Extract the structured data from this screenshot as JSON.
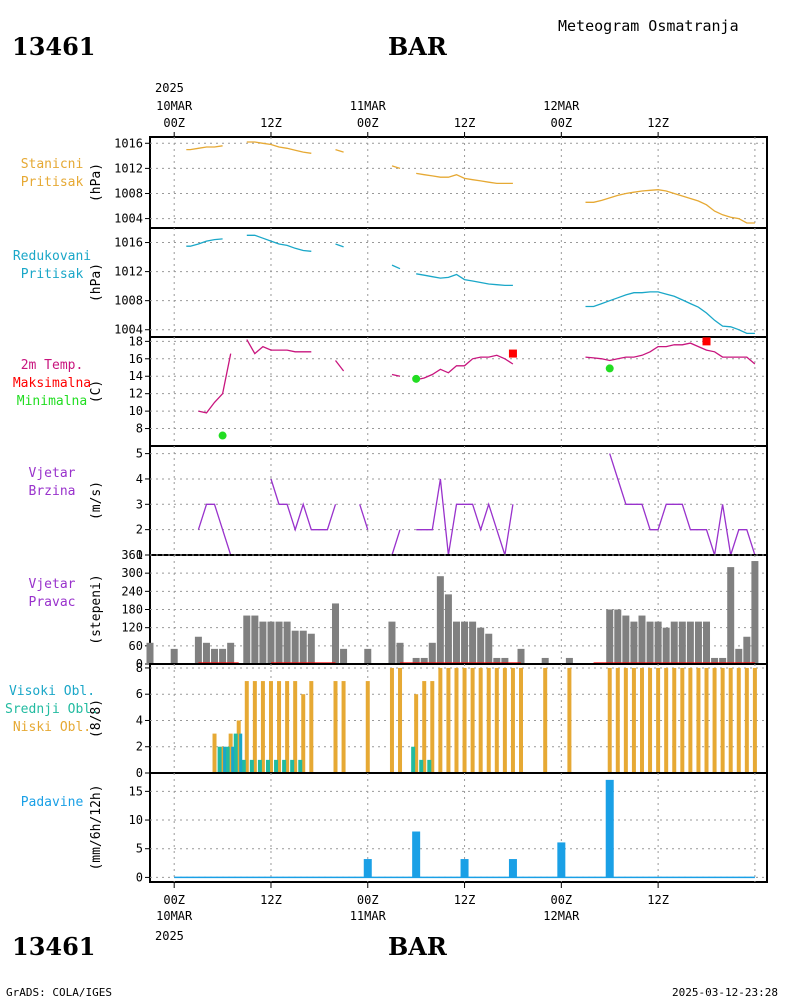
{
  "header": {
    "station_id": "13461",
    "station_name": "BAR",
    "product": "Meteogram Osmatranja"
  },
  "footer": {
    "station_id": "13461",
    "station_name": "BAR",
    "credit": "GrADS: COLA/IGES",
    "timestamp": "2025-03-12-23:28"
  },
  "time_axis": {
    "top_year": "2025",
    "bottom_year": "2025",
    "top_labels": [
      {
        "hour": 0,
        "day": "10MAR",
        "text": "00Z"
      },
      {
        "hour": 12,
        "day": "",
        "text": "12Z"
      },
      {
        "hour": 24,
        "day": "11MAR",
        "text": "00Z"
      },
      {
        "hour": 36,
        "day": "",
        "text": "12Z"
      },
      {
        "hour": 48,
        "day": "12MAR",
        "text": "00Z"
      },
      {
        "hour": 60,
        "day": "",
        "text": "12Z"
      }
    ]
  },
  "colors": {
    "pressure": "#e6a934",
    "reduced_pressure": "#1aa7c8",
    "temp": "#c8157e",
    "tmax": "#ff0000",
    "tmin": "#22dd22",
    "wind_speed": "#9932cc",
    "wind_dir_bar": "#808080",
    "wind_dir_line": "#ff0000",
    "cloud_high": "#1aa7c8",
    "cloud_mid": "#22bba0",
    "cloud_low": "#e6a934",
    "precip": "#1aa0e6"
  },
  "chart_data": [
    {
      "id": "station-pressure",
      "type": "line",
      "label_lines": [
        "Stanicni",
        "Pritisak"
      ],
      "unit": "(hPa)",
      "ylim": [
        1002.5,
        1017
      ],
      "yticks": [
        1004,
        1008,
        1012,
        1016
      ],
      "series": [
        {
          "x": [
            1.5,
            2,
            3,
            4,
            5,
            6
          ],
          "y": [
            1015.0,
            1015.0,
            1015.2,
            1015.4,
            1015.4,
            1015.6
          ]
        },
        {
          "x": [
            9,
            10,
            11,
            12,
            13,
            14,
            15,
            16,
            17
          ],
          "y": [
            1016.2,
            1016.2,
            1016.0,
            1015.8,
            1015.4,
            1015.2,
            1014.9,
            1014.6,
            1014.4
          ]
        },
        {
          "x": [
            20,
            21
          ],
          "y": [
            1015.0,
            1014.6
          ]
        },
        {
          "x": [
            27,
            28
          ],
          "y": [
            1012.4,
            1012.0
          ]
        },
        {
          "x": [
            30,
            31,
            32,
            33,
            34,
            35,
            36,
            37,
            38,
            39,
            40,
            41,
            42
          ],
          "y": [
            1011.2,
            1011.0,
            1010.8,
            1010.6,
            1010.6,
            1011.0,
            1010.4,
            1010.2,
            1010.0,
            1009.8,
            1009.6,
            1009.6,
            1009.6
          ]
        },
        {
          "x": [
            51,
            52,
            53,
            54,
            55,
            56,
            57,
            58,
            59,
            60,
            61,
            62,
            63,
            64,
            65,
            66,
            67,
            68,
            69,
            70,
            71,
            72
          ],
          "y": [
            1006.6,
            1006.6,
            1006.9,
            1007.3,
            1007.7,
            1008.0,
            1008.2,
            1008.4,
            1008.5,
            1008.6,
            1008.4,
            1008.0,
            1007.6,
            1007.2,
            1006.8,
            1006.2,
            1005.2,
            1004.6,
            1004.2,
            1004.0,
            1003.3,
            1003.3
          ]
        }
      ]
    },
    {
      "id": "reduced-pressure",
      "type": "line",
      "label_lines": [
        "Redukovani",
        "Pritisak"
      ],
      "unit": "(hPa)",
      "ylim": [
        1003,
        1018
      ],
      "yticks": [
        1004,
        1008,
        1012,
        1016
      ],
      "series": [
        {
          "x": [
            1.5,
            2,
            3,
            4,
            5,
            6
          ],
          "y": [
            1015.5,
            1015.5,
            1015.8,
            1016.2,
            1016.4,
            1016.5
          ]
        },
        {
          "x": [
            9,
            10,
            11,
            12,
            13,
            14,
            15,
            16,
            17
          ],
          "y": [
            1017.0,
            1017.0,
            1016.6,
            1016.2,
            1015.8,
            1015.6,
            1015.2,
            1014.9,
            1014.8
          ]
        },
        {
          "x": [
            20,
            21
          ],
          "y": [
            1015.8,
            1015.4
          ]
        },
        {
          "x": [
            27,
            28
          ],
          "y": [
            1012.9,
            1012.4
          ]
        },
        {
          "x": [
            30,
            31,
            32,
            33,
            34,
            35,
            36,
            37,
            38,
            39,
            40,
            41,
            42
          ],
          "y": [
            1011.7,
            1011.5,
            1011.3,
            1011.1,
            1011.2,
            1011.6,
            1010.9,
            1010.7,
            1010.5,
            1010.3,
            1010.2,
            1010.1,
            1010.1
          ]
        },
        {
          "x": [
            51,
            52,
            53,
            54,
            55,
            56,
            57,
            58,
            59,
            60,
            61,
            62,
            63,
            64,
            65,
            66,
            67,
            68,
            69,
            70,
            71,
            72
          ],
          "y": [
            1007.2,
            1007.2,
            1007.6,
            1008.0,
            1008.4,
            1008.8,
            1009.1,
            1009.1,
            1009.2,
            1009.2,
            1008.9,
            1008.6,
            1008.1,
            1007.6,
            1007.1,
            1006.3,
            1005.3,
            1004.5,
            1004.4,
            1004.0,
            1003.5,
            1003.5
          ]
        }
      ]
    },
    {
      "id": "temperature",
      "type": "line",
      "label_lines": [
        "2m Temp.",
        "Maksimalna",
        "Minimalna"
      ],
      "label_colors": [
        "#c8157e",
        "#ff0000",
        "#22dd22"
      ],
      "unit": "(C)",
      "ylim": [
        6,
        18.5
      ],
      "yticks": [
        8,
        10,
        12,
        14,
        16,
        18
      ],
      "series": [
        {
          "x": [
            3,
            4,
            5,
            6,
            7
          ],
          "y": [
            10.0,
            9.8,
            11.0,
            12.0,
            16.6
          ]
        },
        {
          "x": [
            9,
            10,
            11,
            12,
            13,
            14,
            15,
            16,
            17
          ],
          "y": [
            18.2,
            16.6,
            17.4,
            17.0,
            17.0,
            17.0,
            16.8,
            16.8,
            16.8
          ]
        },
        {
          "x": [
            20,
            21
          ],
          "y": [
            15.8,
            14.6
          ]
        },
        {
          "x": [
            27,
            28
          ],
          "y": [
            14.2,
            14.0
          ]
        },
        {
          "x": [
            30,
            31,
            32,
            33,
            34,
            35,
            36,
            37,
            38,
            39,
            40,
            41,
            42
          ],
          "y": [
            13.6,
            13.8,
            14.2,
            14.8,
            14.4,
            15.2,
            15.2,
            16.0,
            16.2,
            16.2,
            16.4,
            16.0,
            15.4
          ]
        },
        {
          "x": [
            51,
            52,
            53,
            54,
            55,
            56,
            57,
            58,
            59,
            60,
            61,
            62,
            63,
            64,
            65,
            66,
            67,
            68,
            69,
            70,
            71,
            72
          ],
          "y": [
            16.2,
            16.1,
            16.0,
            15.8,
            16.0,
            16.2,
            16.2,
            16.4,
            16.8,
            17.4,
            17.4,
            17.6,
            17.6,
            17.8,
            17.4,
            17.0,
            16.8,
            16.2,
            16.2,
            16.2,
            16.2,
            15.4
          ]
        }
      ],
      "tmax": [
        {
          "x": 42,
          "y": 16.6
        },
        {
          "x": 66,
          "y": 18.0
        }
      ],
      "tmin": [
        {
          "x": 6,
          "y": 7.2
        },
        {
          "x": 30,
          "y": 13.7
        },
        {
          "x": 54,
          "y": 14.9
        }
      ]
    },
    {
      "id": "wind-speed",
      "type": "line",
      "label_lines": [
        "Vjetar",
        "Brzina"
      ],
      "unit": "(m/s)",
      "ylim": [
        1,
        5.3
      ],
      "yticks": [
        1,
        2,
        3,
        4,
        5
      ],
      "series": [
        {
          "x": [
            3,
            4,
            5,
            6,
            7
          ],
          "y": [
            2,
            3,
            3,
            2,
            1
          ]
        },
        {
          "x": [
            12,
            13,
            14,
            15,
            16,
            17,
            18,
            19,
            20
          ],
          "y": [
            4,
            3,
            3,
            2,
            3,
            2,
            2,
            2,
            3
          ]
        },
        {
          "x": [
            23,
            24
          ],
          "y": [
            3,
            2
          ]
        },
        {
          "x": [
            27,
            28,
            29,
            30,
            31,
            32,
            33,
            34,
            35,
            36,
            37,
            38,
            39,
            40,
            41,
            42
          ],
          "y": [
            1,
            2,
            null,
            2,
            2,
            2,
            4,
            1,
            3,
            3,
            3,
            2,
            3,
            2,
            1,
            3
          ]
        },
        {
          "x": [
            54,
            55,
            56,
            57,
            58,
            59,
            60,
            61,
            62,
            63,
            64,
            65,
            66,
            67,
            68,
            69,
            70,
            71,
            72
          ],
          "y": [
            5,
            4,
            3,
            3,
            3,
            2,
            2,
            3,
            3,
            3,
            2,
            2,
            2,
            1,
            3,
            1,
            2,
            2,
            1
          ]
        }
      ]
    },
    {
      "id": "wind-direction",
      "type": "bar",
      "label_lines": [
        "Vjetar",
        "Pravac"
      ],
      "unit": "(stepeni)",
      "ylim": [
        0,
        360
      ],
      "yticks": [
        0,
        60,
        120,
        180,
        240,
        300,
        360
      ],
      "x": [
        -3,
        0,
        3,
        4,
        5,
        6,
        7,
        9,
        10,
        11,
        12,
        13,
        14,
        15,
        16,
        17,
        20,
        21,
        24,
        27,
        28,
        30,
        31,
        32,
        33,
        34,
        35,
        36,
        37,
        38,
        39,
        40,
        41,
        43,
        46,
        49,
        54,
        55,
        56,
        57,
        58,
        59,
        60,
        61,
        62,
        63,
        64,
        65,
        66,
        67,
        68,
        69,
        70,
        71,
        72
      ],
      "values": [
        70,
        50,
        90,
        70,
        50,
        50,
        70,
        160,
        160,
        140,
        140,
        140,
        140,
        110,
        110,
        100,
        200,
        50,
        50,
        140,
        70,
        20,
        20,
        70,
        290,
        230,
        140,
        140,
        140,
        120,
        100,
        20,
        20,
        50,
        20,
        20,
        180,
        180,
        160,
        140,
        160,
        140,
        140,
        120,
        140,
        140,
        140,
        140,
        140,
        20,
        20,
        320,
        50,
        90,
        340
      ],
      "calm_segments": [
        [
          3,
          8
        ],
        [
          12,
          20
        ],
        [
          28,
          43
        ],
        [
          52,
          72
        ]
      ]
    },
    {
      "id": "cloud-cover",
      "type": "bar",
      "label_lines": [
        "Visoki Obl.",
        "Srednji Obl.",
        "Niski Obl."
      ],
      "label_colors": [
        "#1aa7c8",
        "#22bba0",
        "#e6a934"
      ],
      "unit": "(8/8)",
      "ylim": [
        0,
        8.3
      ],
      "yticks": [
        0,
        2,
        4,
        6,
        8
      ],
      "low": {
        "x": [
          5,
          6,
          7,
          8,
          9,
          10,
          11,
          12,
          13,
          14,
          15,
          16,
          17,
          20,
          21,
          24,
          27,
          28,
          30,
          31,
          32,
          33,
          34,
          35,
          36,
          37,
          38,
          39,
          40,
          41,
          42,
          43,
          46,
          49,
          54,
          55,
          56,
          57,
          58,
          59,
          60,
          61,
          62,
          63,
          64,
          65,
          66,
          67,
          68,
          69,
          70,
          71,
          72
        ],
        "values": [
          3,
          2,
          3,
          4,
          7,
          7,
          7,
          7,
          7,
          7,
          7,
          6,
          7,
          7,
          7,
          7,
          8,
          8,
          6,
          7,
          7,
          8,
          8,
          8,
          8,
          8,
          8,
          8,
          8,
          8,
          8,
          8,
          8,
          8,
          8,
          8,
          8,
          8,
          8,
          8,
          8,
          8,
          8,
          8,
          8,
          8,
          8,
          8,
          8,
          8,
          8,
          8,
          8
        ]
      },
      "mid": {
        "x": [
          6,
          7,
          8,
          9,
          10,
          11,
          12,
          13,
          14,
          15,
          16,
          30,
          31,
          32
        ],
        "values": [
          2,
          2,
          3,
          1,
          1,
          1,
          1,
          1,
          1,
          1,
          1,
          2,
          1,
          1
        ]
      },
      "high": {
        "x": [
          6,
          7,
          8
        ],
        "values": [
          2,
          2,
          3
        ]
      }
    },
    {
      "id": "precipitation",
      "type": "bar",
      "label_lines": [
        "Padavine"
      ],
      "unit": "(mm/6h/12h)",
      "ylim": [
        -0.8,
        18.2
      ],
      "yticks": [
        0,
        5,
        10,
        15
      ],
      "x": [
        24,
        30,
        36,
        42,
        48,
        54
      ],
      "values": [
        3.2,
        8,
        3.2,
        3.2,
        6.1,
        17
      ]
    }
  ]
}
